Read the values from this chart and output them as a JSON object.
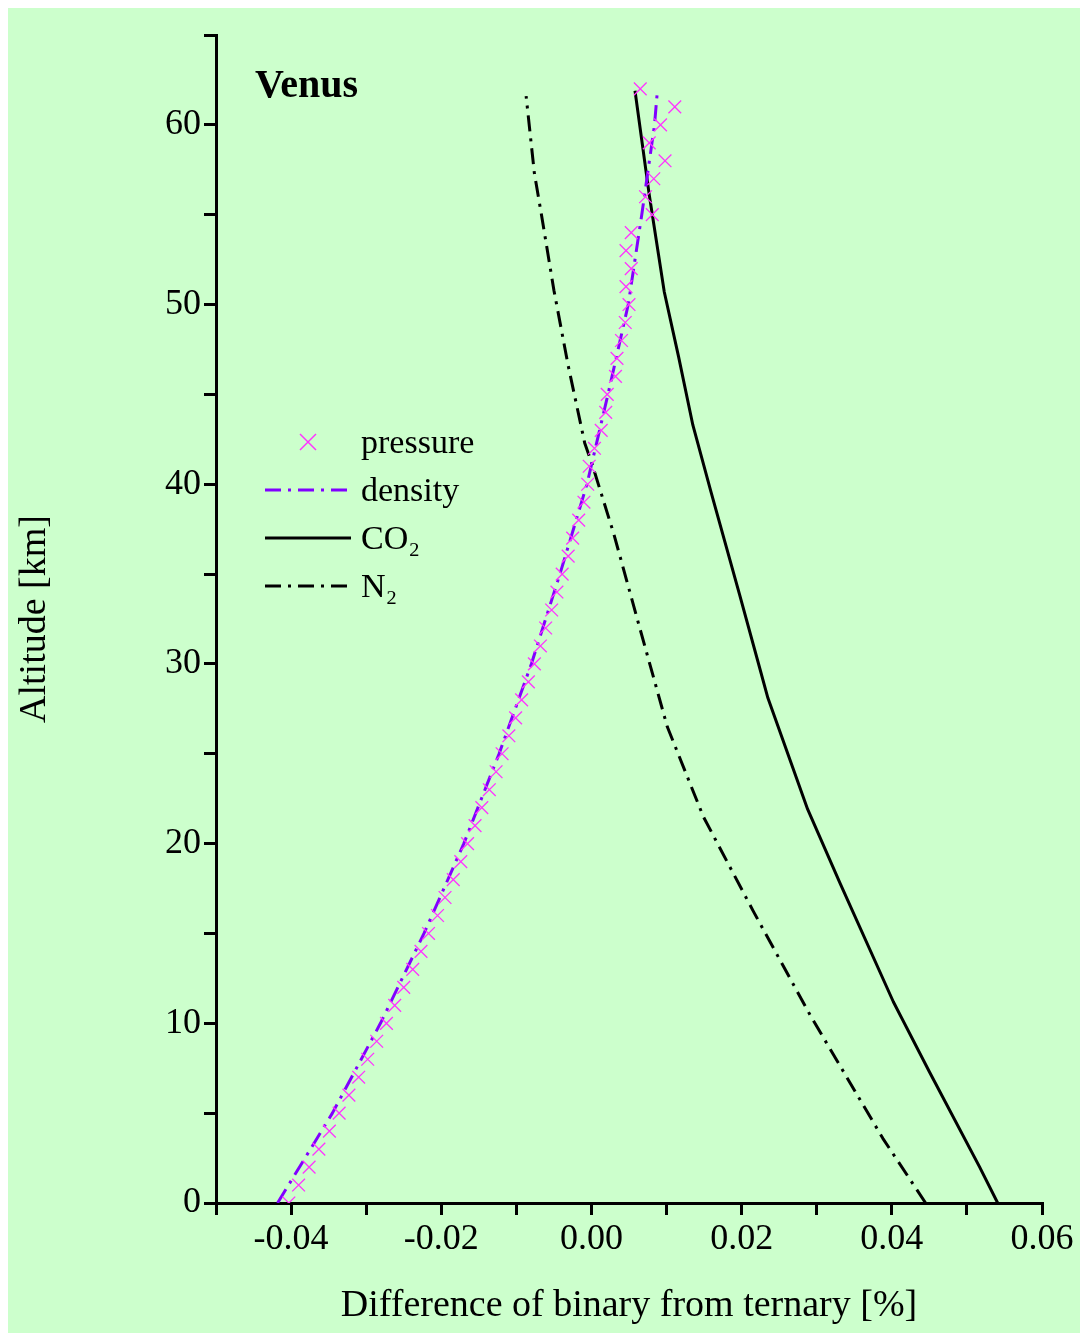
{
  "chart_data": {
    "type": "line",
    "title": "Venus",
    "xlabel": "Difference of binary from ternary [%]",
    "ylabel": "Altitude [km]",
    "xlim": [
      -0.05,
      0.06
    ],
    "xticks": [
      {
        "value": -0.05,
        "label": null
      },
      {
        "value": -0.04,
        "label": "-0.04"
      },
      {
        "value": -0.03,
        "label": null
      },
      {
        "value": -0.02,
        "label": "-0.02"
      },
      {
        "value": -0.01,
        "label": null
      },
      {
        "value": 0,
        "label": "0.00"
      },
      {
        "value": 0.01,
        "label": null
      },
      {
        "value": 0.02,
        "label": "0.02"
      },
      {
        "value": 0.03,
        "label": null
      },
      {
        "value": 0.04,
        "label": "0.04"
      },
      {
        "value": 0.05,
        "label": null
      },
      {
        "value": 0.06,
        "label": "0.06"
      }
    ],
    "ylim": [
      0,
      65
    ],
    "yticks": [
      0,
      {
        "value": 5,
        "label": null
      },
      10,
      {
        "value": 15,
        "label": null
      },
      20,
      {
        "value": 25,
        "label": null
      },
      30,
      {
        "value": 35,
        "label": null
      },
      40,
      {
        "value": 45,
        "label": null
      },
      50,
      {
        "value": 55,
        "label": null
      },
      60,
      {
        "value": 65,
        "label": null
      }
    ],
    "legend": "left",
    "series": [
      {
        "name": "pressure",
        "type": "scatter",
        "marker": "cross",
        "color": "#ff33ff",
        "x": [
          -0.0403,
          -0.039,
          -0.0376,
          -0.0363,
          -0.0349,
          -0.0336,
          -0.0323,
          -0.031,
          -0.0298,
          -0.0286,
          -0.0273,
          -0.0262,
          -0.025,
          -0.0238,
          -0.0227,
          -0.0217,
          -0.0205,
          -0.0195,
          -0.0184,
          -0.0174,
          -0.0165,
          -0.0155,
          -0.0146,
          -0.0136,
          -0.0127,
          -0.0119,
          -0.011,
          -0.0101,
          -0.0093,
          -0.0084,
          -0.0076,
          -0.0068,
          -0.0061,
          -0.0053,
          -0.0046,
          -0.0039,
          -0.0031,
          -0.0025,
          -0.0017,
          -0.001,
          -0.0005,
          -0.0003,
          0.0004,
          0.0013,
          0.0019,
          0.0021,
          0.0032,
          0.0034,
          0.004,
          0.0045,
          0.005,
          0.0046,
          0.0053,
          0.0046,
          0.0053,
          0.0081,
          0.0072,
          0.0083,
          0.0098,
          0.0077,
          0.0092,
          0.0111,
          0.0065
        ],
        "values": [
          0,
          1,
          2,
          3,
          4,
          5,
          6,
          7,
          8,
          9,
          10,
          11,
          12,
          13,
          14,
          15,
          16,
          17,
          18,
          19,
          20,
          21,
          22,
          23,
          24,
          25,
          26,
          27,
          28,
          29,
          30,
          31,
          32,
          33,
          34,
          35,
          36,
          37,
          38,
          39,
          40,
          41,
          42,
          43,
          44,
          45,
          46,
          47,
          48,
          49,
          50,
          51,
          52,
          53,
          54,
          55,
          56,
          57,
          58,
          59,
          60,
          61,
          62
        ]
      },
      {
        "name": "density",
        "type": "line",
        "line_style": "dashed",
        "color": "#8000ff",
        "x": [
          -0.0418,
          -0.0345,
          -0.0281,
          -0.0223,
          -0.017,
          -0.0123,
          -0.008,
          -0.0042,
          -0.0006,
          0.0022,
          0.0049,
          0.0067,
          0.0084,
          0.0088
        ],
        "values": [
          0,
          5,
          10,
          15,
          20,
          25,
          30,
          35,
          40,
          45,
          50,
          55,
          60,
          62
        ]
      },
      {
        "name": "CO₂",
        "type": "line",
        "line_style": "solid",
        "color": "#000000",
        "x": [
          0.0541,
          0.0517,
          0.045,
          0.0402,
          0.0331,
          0.0288,
          0.0235,
          0.0197,
          0.0159,
          0.0135,
          0.0116,
          0.0097,
          0.0077,
          0.0058
        ],
        "values": [
          0,
          2,
          7.3,
          11.2,
          17.8,
          21.9,
          28.1,
          33.9,
          39.6,
          43.3,
          47.1,
          50.7,
          56.1,
          61.9
        ]
      },
      {
        "name": "N₂",
        "type": "line",
        "line_style": "dashed",
        "color": "#000000",
        "x": [
          0.0445,
          0.0388,
          0.0292,
          0.0216,
          0.0149,
          0.0101,
          0.0063,
          0.003,
          0.0001,
          -0.0009,
          -0.0031,
          -0.005,
          -0.0067,
          -0.0076,
          -0.0087
        ],
        "values": [
          0,
          3.6,
          10.4,
          16.2,
          21.5,
          26.5,
          32.2,
          37.2,
          41.1,
          42.3,
          46.6,
          50.8,
          55.1,
          57.3,
          61.6
        ]
      }
    ]
  }
}
